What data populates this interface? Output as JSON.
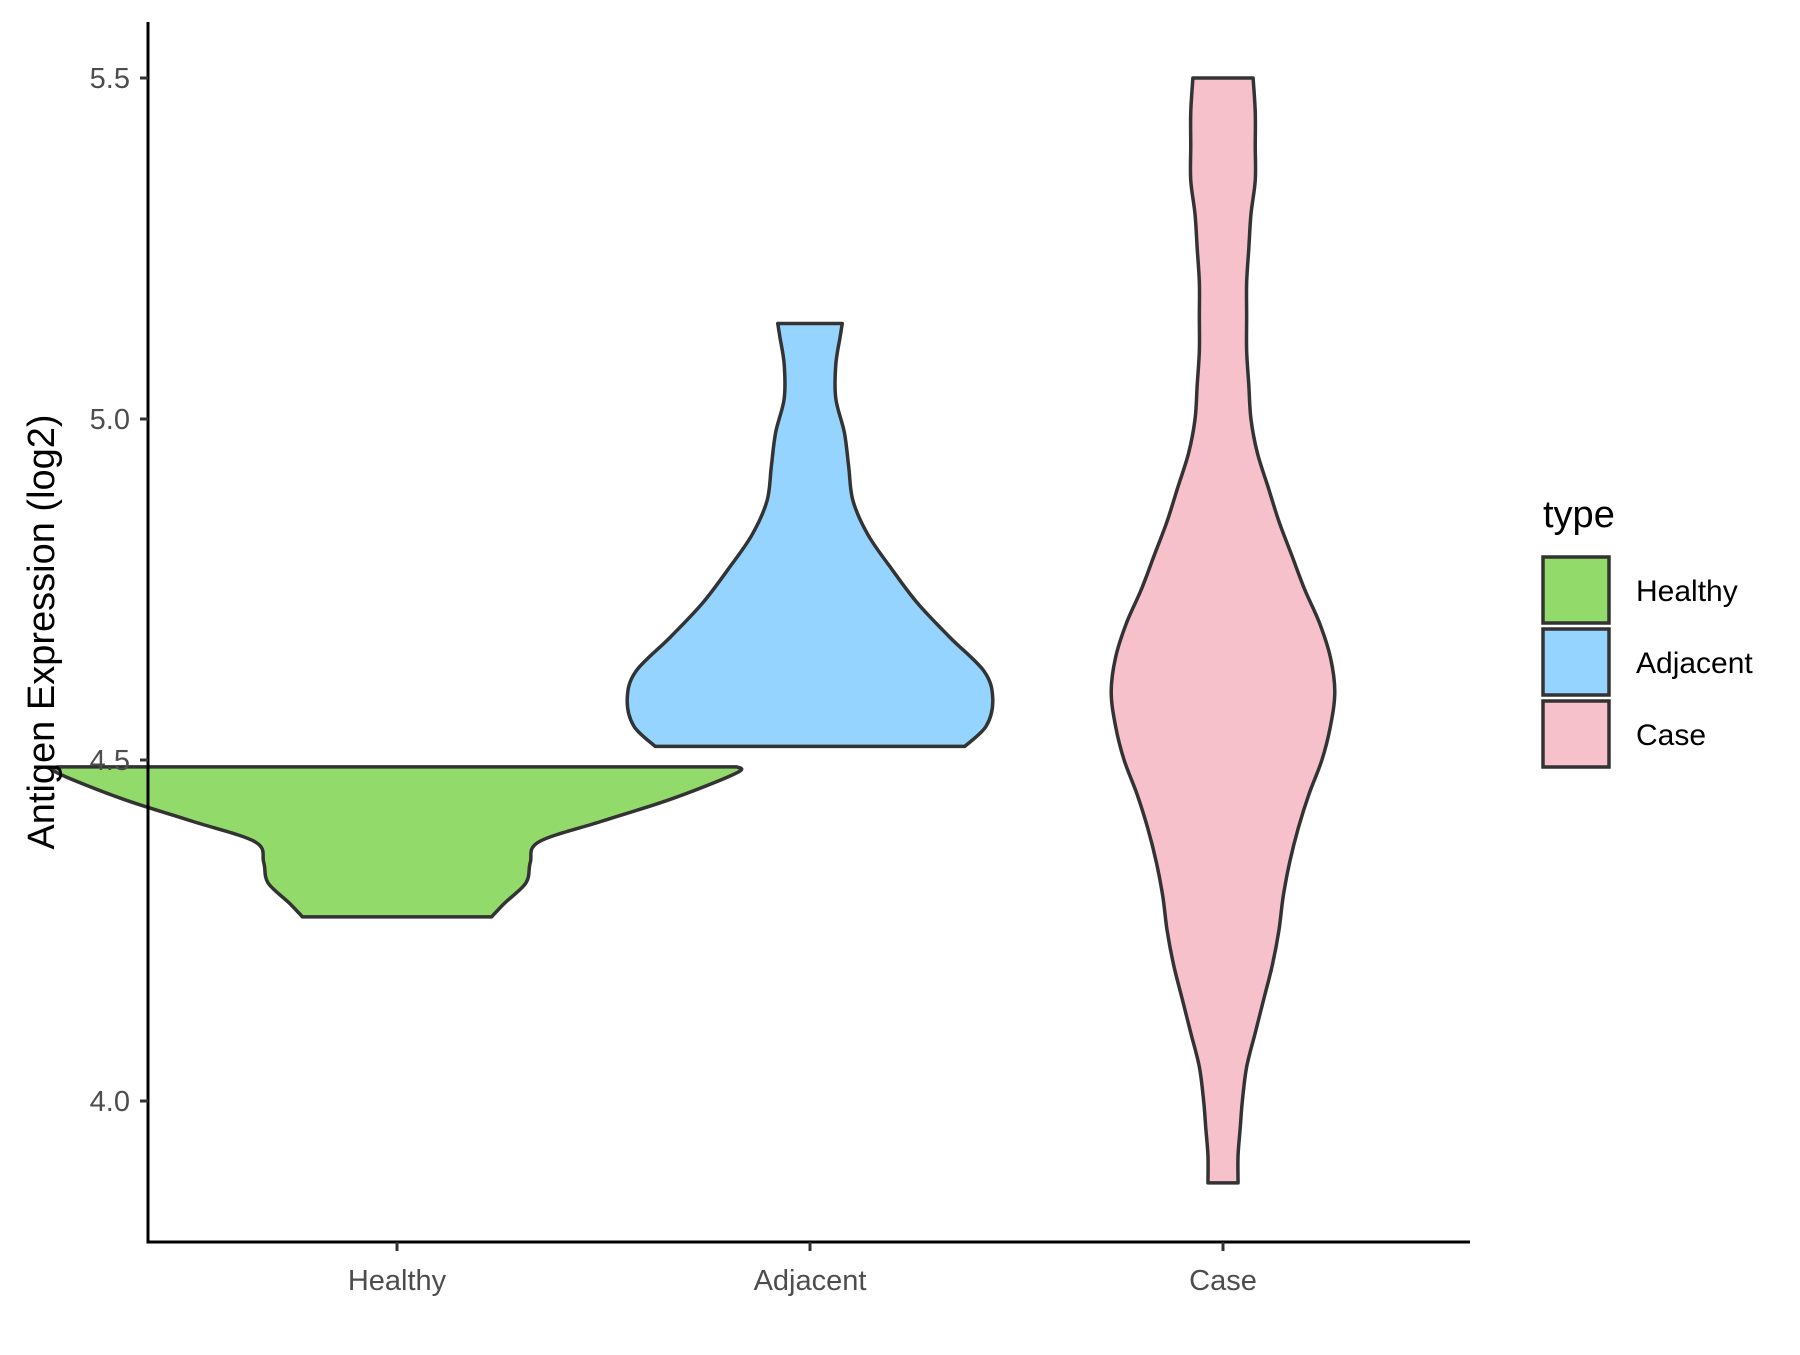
{
  "chart_data": {
    "type": "violin",
    "ylabel": "Antigen Expression (log2)",
    "xlabel": "",
    "categories": [
      "Healthy",
      "Adjacent",
      "Case"
    ],
    "yticks": [
      "4.0",
      "4.5",
      "5.0",
      "5.5"
    ],
    "ylim": [
      3.8,
      5.58
    ],
    "legend": {
      "title": "type",
      "position": "right",
      "items": [
        {
          "label": "Healthy",
          "color": "#92db6b"
        },
        {
          "label": "Adjacent",
          "color": "#94d4ff"
        },
        {
          "label": "Case",
          "color": "#f7c1cc"
        }
      ]
    },
    "series": [
      {
        "category": "Healthy",
        "color": "#92db6b",
        "min": 4.27,
        "max": 4.49,
        "density": [
          [
            4.27,
            0.44
          ],
          [
            4.29,
            0.5
          ],
          [
            4.32,
            0.6
          ],
          [
            4.35,
            0.62
          ],
          [
            4.38,
            0.66
          ],
          [
            4.41,
            0.95
          ],
          [
            4.44,
            1.25
          ],
          [
            4.47,
            1.5
          ],
          [
            4.485,
            1.6
          ],
          [
            4.49,
            1.58
          ]
        ]
      },
      {
        "category": "Adjacent",
        "color": "#94d4ff",
        "min": 4.52,
        "max": 5.14,
        "density": [
          [
            4.52,
            0.72
          ],
          [
            4.55,
            0.82
          ],
          [
            4.59,
            0.85
          ],
          [
            4.63,
            0.81
          ],
          [
            4.68,
            0.65
          ],
          [
            4.73,
            0.5
          ],
          [
            4.78,
            0.38
          ],
          [
            4.83,
            0.27
          ],
          [
            4.88,
            0.2
          ],
          [
            4.93,
            0.18
          ],
          [
            4.98,
            0.16
          ],
          [
            5.03,
            0.12
          ],
          [
            5.08,
            0.12
          ],
          [
            5.12,
            0.14
          ],
          [
            5.14,
            0.15
          ]
        ]
      },
      {
        "category": "Case",
        "color": "#f7c1cc",
        "min": 3.88,
        "max": 5.5,
        "density": [
          [
            3.88,
            0.07
          ],
          [
            3.92,
            0.07
          ],
          [
            3.96,
            0.08
          ],
          [
            4.0,
            0.09
          ],
          [
            4.05,
            0.11
          ],
          [
            4.1,
            0.15
          ],
          [
            4.15,
            0.19
          ],
          [
            4.2,
            0.23
          ],
          [
            4.25,
            0.26
          ],
          [
            4.3,
            0.28
          ],
          [
            4.35,
            0.31
          ],
          [
            4.4,
            0.35
          ],
          [
            4.45,
            0.4
          ],
          [
            4.5,
            0.46
          ],
          [
            4.55,
            0.5
          ],
          [
            4.6,
            0.52
          ],
          [
            4.65,
            0.5
          ],
          [
            4.7,
            0.45
          ],
          [
            4.75,
            0.38
          ],
          [
            4.8,
            0.32
          ],
          [
            4.85,
            0.26
          ],
          [
            4.9,
            0.21
          ],
          [
            4.95,
            0.16
          ],
          [
            5.0,
            0.13
          ],
          [
            5.05,
            0.12
          ],
          [
            5.1,
            0.11
          ],
          [
            5.15,
            0.11
          ],
          [
            5.2,
            0.11
          ],
          [
            5.25,
            0.12
          ],
          [
            5.3,
            0.13
          ],
          [
            5.35,
            0.15
          ],
          [
            5.4,
            0.15
          ],
          [
            5.45,
            0.15
          ],
          [
            5.5,
            0.14
          ]
        ]
      }
    ]
  }
}
